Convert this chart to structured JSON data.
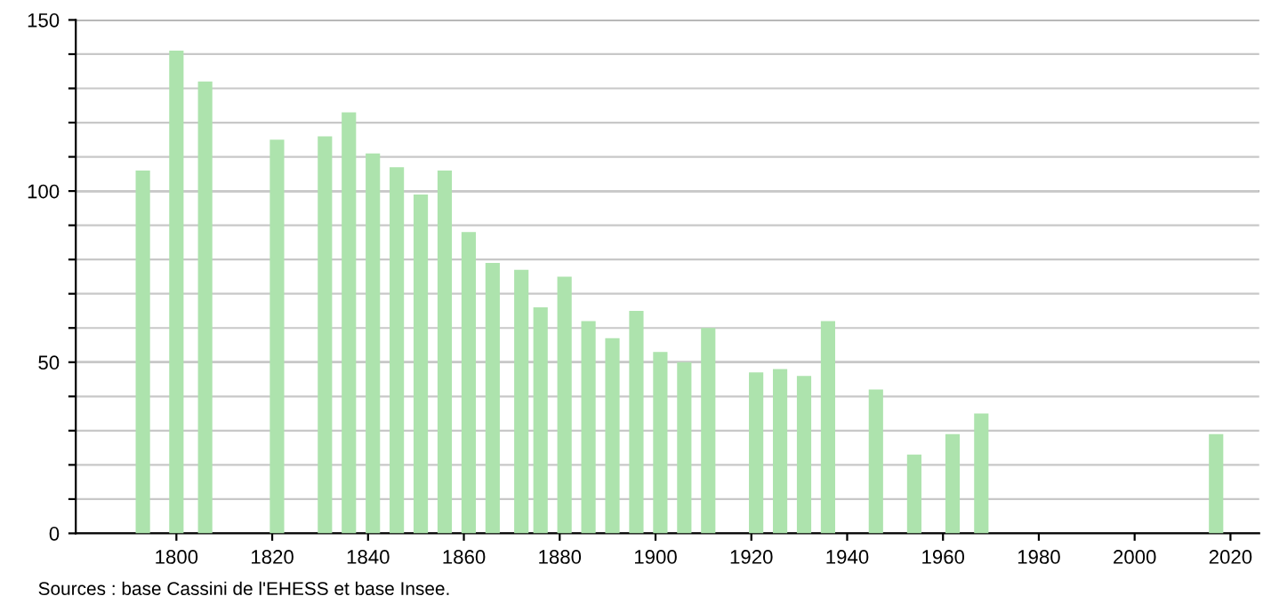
{
  "chart_data": {
    "type": "bar",
    "x": [
      1793,
      1800,
      1806,
      1821,
      1831,
      1836,
      1841,
      1846,
      1851,
      1856,
      1861,
      1866,
      1872,
      1876,
      1881,
      1886,
      1891,
      1896,
      1901,
      1906,
      1911,
      1921,
      1926,
      1931,
      1936,
      1946,
      1954,
      1962,
      1968,
      2017
    ],
    "values": [
      106,
      141,
      132,
      115,
      116,
      123,
      111,
      107,
      99,
      106,
      88,
      79,
      77,
      66,
      75,
      62,
      57,
      65,
      53,
      50,
      60,
      47,
      48,
      46,
      62,
      42,
      23,
      29,
      35,
      29
    ],
    "color": "#ade3ad",
    "xlim": [
      1779,
      2026
    ],
    "xticks": [
      1800,
      1820,
      1840,
      1860,
      1880,
      1900,
      1920,
      1940,
      1960,
      1980,
      2000,
      2020
    ],
    "ylim": [
      0,
      150
    ],
    "yticks": [
      0,
      {
        "value": 10,
        "label": null
      },
      {
        "value": 20,
        "label": null
      },
      {
        "value": 30,
        "label": null
      },
      {
        "value": 40,
        "label": null
      },
      50,
      {
        "value": 60,
        "label": null
      },
      {
        "value": 70,
        "label": null
      },
      {
        "value": 80,
        "label": null
      },
      {
        "value": 90,
        "label": null
      },
      100,
      {
        "value": 110,
        "label": null
      },
      {
        "value": 120,
        "label": null
      },
      {
        "value": 130,
        "label": null
      },
      {
        "value": 140,
        "label": null
      },
      150
    ],
    "grid": "y",
    "annotations": [
      "Sources : base Cassini de l'EHESS et base Insee."
    ]
  }
}
